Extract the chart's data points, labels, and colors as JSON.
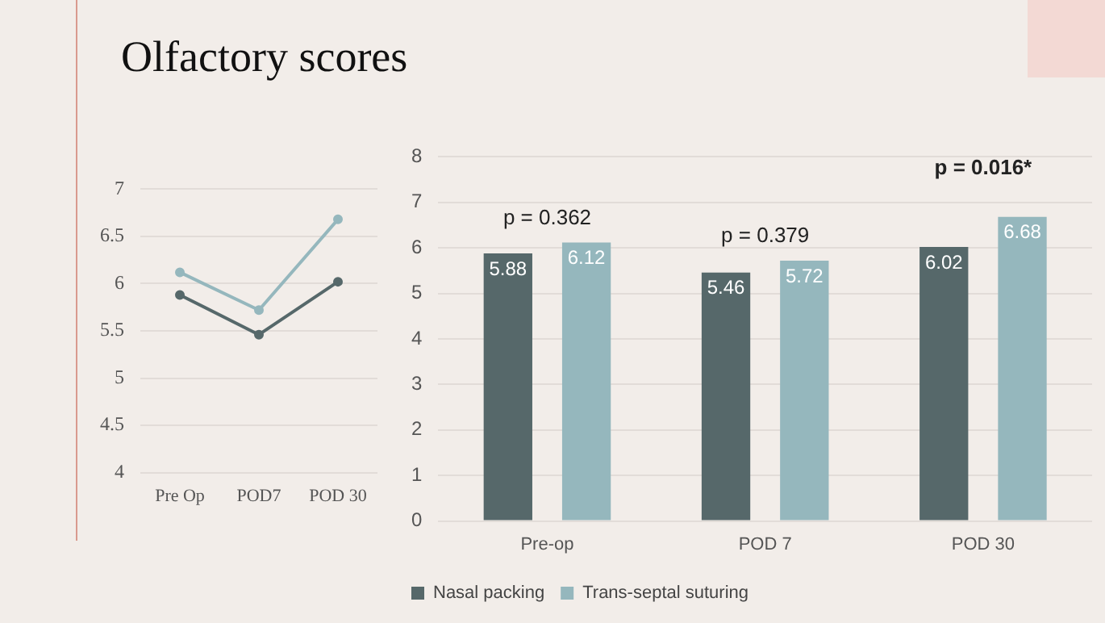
{
  "chart_data": [
    {
      "type": "line",
      "title": "Olfactory scores",
      "categories": [
        "Pre Op",
        "POD7",
        "POD 30"
      ],
      "series": [
        {
          "color": "#95b7bd",
          "values": [
            6.12,
            5.72,
            6.68
          ]
        },
        {
          "color": "#56686a",
          "values": [
            5.88,
            5.46,
            6.02
          ]
        }
      ],
      "ylim": [
        4,
        7
      ],
      "yticks": [
        4,
        {
          "value": 4.5,
          "label": "4.5"
        },
        5,
        {
          "value": 5.5,
          "label": "5.5"
        },
        6,
        {
          "value": 6.5,
          "label": "6.5"
        },
        7
      ],
      "grid": "y",
      "marker": "circle"
    },
    {
      "type": "bar",
      "categories": [
        "Pre-op",
        "POD 7",
        "POD 30"
      ],
      "series": [
        {
          "name": "Nasal packing",
          "color": "#56686a",
          "values": [
            5.88,
            5.46,
            6.02
          ]
        },
        {
          "name": "Trans-septal suturing",
          "color": "#95b7bd",
          "values": [
            6.12,
            5.72,
            6.68
          ]
        }
      ],
      "ylim": [
        0,
        8
      ],
      "yticks": [
        0,
        1,
        2,
        3,
        4,
        5,
        6,
        7,
        8
      ],
      "grid": "y",
      "legend": "bottom",
      "data_labels": true,
      "annotations": [
        "p = 0.362",
        "p = 0.379",
        "p = 0.016*"
      ]
    }
  ]
}
